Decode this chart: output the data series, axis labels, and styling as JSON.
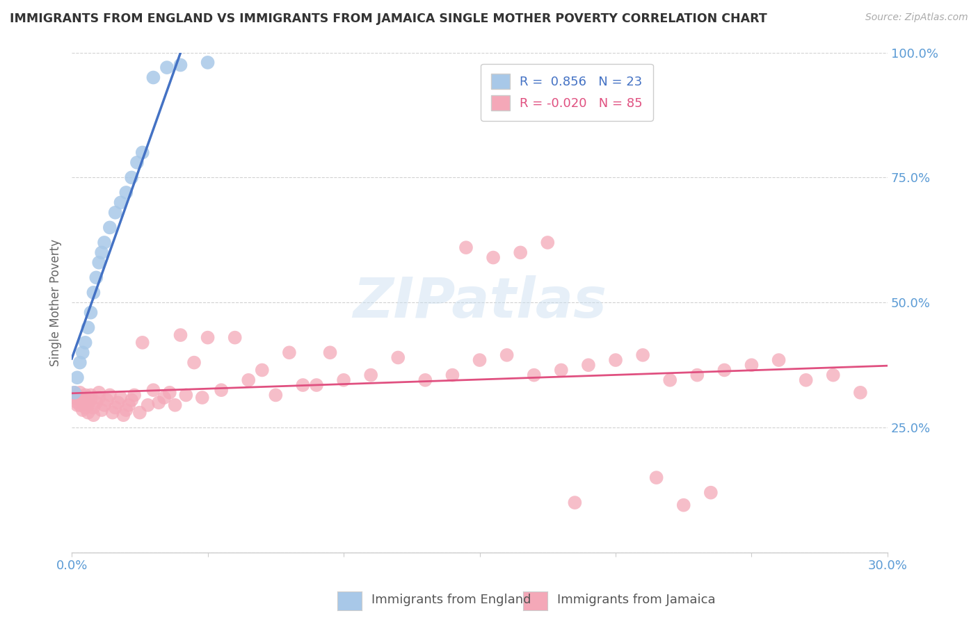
{
  "title": "IMMIGRANTS FROM ENGLAND VS IMMIGRANTS FROM JAMAICA SINGLE MOTHER POVERTY CORRELATION CHART",
  "source": "Source: ZipAtlas.com",
  "ylabel": "Single Mother Poverty",
  "x_min": 0.0,
  "x_max": 0.3,
  "y_min": 0.0,
  "y_max": 1.0,
  "x_ticks": [
    0.0,
    0.05,
    0.1,
    0.15,
    0.2,
    0.25,
    0.3
  ],
  "y_ticks": [
    0.0,
    0.25,
    0.5,
    0.75,
    1.0
  ],
  "y_tick_labels": [
    "",
    "25.0%",
    "50.0%",
    "75.0%",
    "100.0%"
  ],
  "legend_england": "Immigrants from England",
  "legend_jamaica": "Immigrants from Jamaica",
  "R_england": 0.856,
  "N_england": 23,
  "R_jamaica": -0.02,
  "N_jamaica": 85,
  "england_color": "#a8c8e8",
  "england_line_color": "#4472c4",
  "jamaica_color": "#f4a8b8",
  "jamaica_line_color": "#e05080",
  "tick_color": "#5b9bd5",
  "england_x": [
    0.001,
    0.002,
    0.003,
    0.004,
    0.005,
    0.006,
    0.007,
    0.008,
    0.009,
    0.01,
    0.011,
    0.012,
    0.014,
    0.016,
    0.018,
    0.02,
    0.022,
    0.024,
    0.026,
    0.03,
    0.035,
    0.04,
    0.05
  ],
  "england_y": [
    0.32,
    0.35,
    0.38,
    0.4,
    0.42,
    0.45,
    0.48,
    0.52,
    0.55,
    0.58,
    0.6,
    0.62,
    0.65,
    0.68,
    0.7,
    0.72,
    0.75,
    0.78,
    0.8,
    0.95,
    0.97,
    0.975,
    0.98
  ],
  "jamaica_x": [
    0.001,
    0.001,
    0.002,
    0.002,
    0.002,
    0.003,
    0.003,
    0.003,
    0.004,
    0.004,
    0.005,
    0.005,
    0.005,
    0.006,
    0.006,
    0.007,
    0.007,
    0.008,
    0.008,
    0.009,
    0.01,
    0.01,
    0.011,
    0.012,
    0.013,
    0.014,
    0.015,
    0.016,
    0.017,
    0.018,
    0.019,
    0.02,
    0.021,
    0.022,
    0.023,
    0.025,
    0.026,
    0.028,
    0.03,
    0.032,
    0.034,
    0.036,
    0.038,
    0.04,
    0.042,
    0.045,
    0.048,
    0.05,
    0.055,
    0.06,
    0.065,
    0.07,
    0.075,
    0.08,
    0.085,
    0.09,
    0.095,
    0.1,
    0.11,
    0.12,
    0.13,
    0.14,
    0.15,
    0.16,
    0.17,
    0.18,
    0.19,
    0.2,
    0.21,
    0.22,
    0.23,
    0.24,
    0.25,
    0.26,
    0.27,
    0.28,
    0.29,
    0.215,
    0.225,
    0.235,
    0.145,
    0.155,
    0.165,
    0.175,
    0.185
  ],
  "jamaica_y": [
    0.32,
    0.31,
    0.3,
    0.315,
    0.295,
    0.31,
    0.295,
    0.32,
    0.285,
    0.3,
    0.29,
    0.305,
    0.315,
    0.28,
    0.295,
    0.305,
    0.315,
    0.275,
    0.29,
    0.3,
    0.31,
    0.32,
    0.285,
    0.295,
    0.305,
    0.315,
    0.28,
    0.29,
    0.3,
    0.31,
    0.275,
    0.285,
    0.295,
    0.305,
    0.315,
    0.28,
    0.42,
    0.295,
    0.325,
    0.3,
    0.31,
    0.32,
    0.295,
    0.435,
    0.315,
    0.38,
    0.31,
    0.43,
    0.325,
    0.43,
    0.345,
    0.365,
    0.315,
    0.4,
    0.335,
    0.335,
    0.4,
    0.345,
    0.355,
    0.39,
    0.345,
    0.355,
    0.385,
    0.395,
    0.355,
    0.365,
    0.375,
    0.385,
    0.395,
    0.345,
    0.355,
    0.365,
    0.375,
    0.385,
    0.345,
    0.355,
    0.32,
    0.15,
    0.095,
    0.12,
    0.61,
    0.59,
    0.6,
    0.62,
    0.1
  ]
}
